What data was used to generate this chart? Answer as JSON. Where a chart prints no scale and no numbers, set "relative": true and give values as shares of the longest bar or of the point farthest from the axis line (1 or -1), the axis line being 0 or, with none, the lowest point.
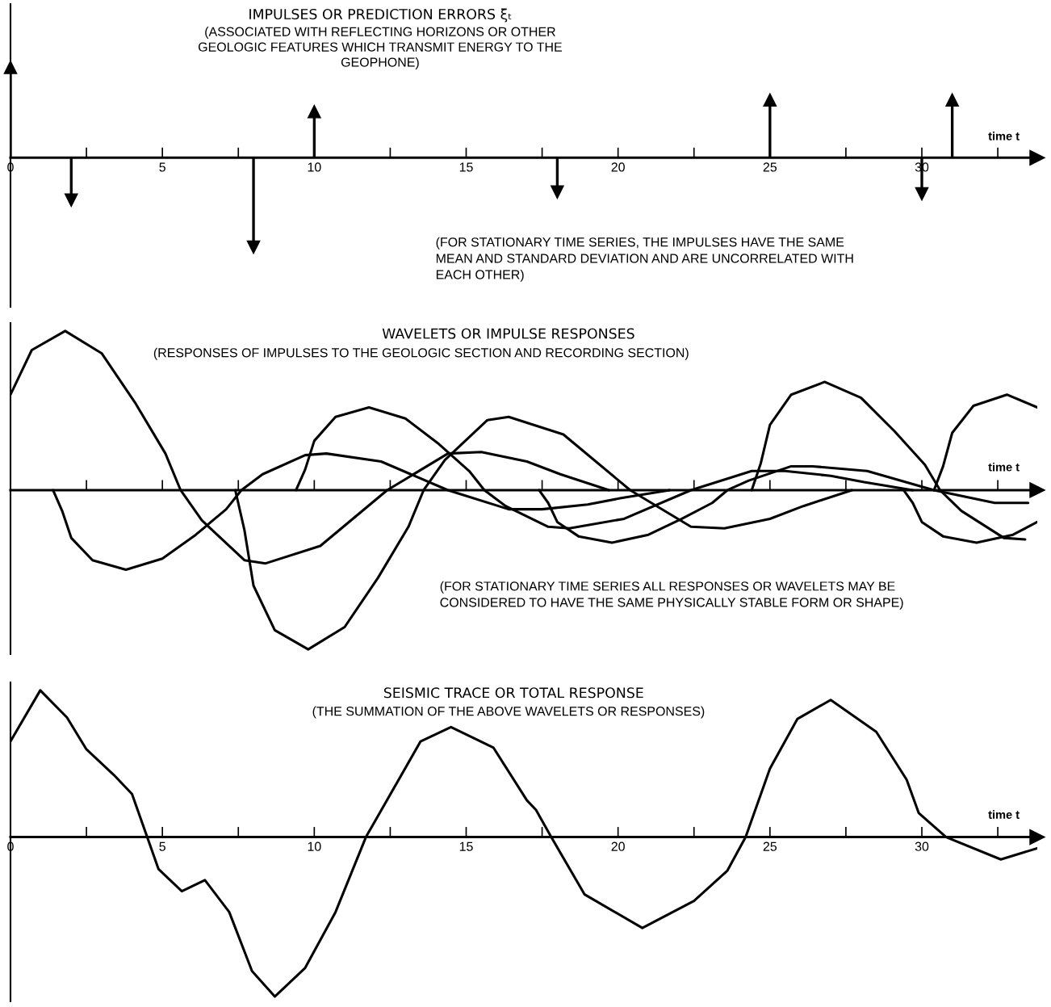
{
  "chart_data": [
    {
      "type": "lollipop",
      "title": "IMPULSES OR PREDICTION ERRORS ξₜ",
      "subtitle": "(ASSOCIATED WITH REFLECTING HORIZONS OR OTHER\nGEOLOGIC FEATURES WHICH TRANSMIT ENERGY TO THE\nGEOPHONE)",
      "xlabel": "time t",
      "annotations": [
        "(FOR STATIONARY TIME SERIES, THE IMPULSES HAVE THE SAME\nMEAN AND STANDARD DEVIATION AND ARE UNCORRELATED WITH\nEACH OTHER)"
      ],
      "relative": true,
      "marker": "triangle",
      "color": "#000000",
      "x": [
        0,
        2,
        8,
        10,
        18,
        25,
        30,
        31
      ],
      "values": [
        1.0,
        -0.47,
        -0.99,
        0.51,
        -0.38,
        0.64,
        -0.4,
        0.64
      ],
      "xlim": [
        0,
        33.8
      ],
      "xticks": [
        0,
        {
          "value": 2.5,
          "label": null
        },
        5,
        {
          "value": 7.5,
          "label": null
        },
        10,
        {
          "value": 12.5,
          "label": null
        },
        15,
        {
          "value": 17.5,
          "label": null
        },
        20,
        {
          "value": 22.5,
          "label": null
        },
        25,
        {
          "value": 27.5,
          "label": null
        },
        30,
        {
          "value": 32.5,
          "label": null
        }
      ],
      "tick_labels": "x"
    },
    {
      "type": "line",
      "title": "WAVELETS OR IMPULSE RESPONSES",
      "subtitle": "(RESPONSES OF IMPULSES TO THE GEOLOGIC SECTION AND RECORDING SECTION)",
      "xlabel": "time t",
      "annotations": [
        "(FOR STATIONARY TIME SERIES ALL RESPONSES OR WAVELETS MAY BE\nCONSIDERED TO HAVE THE SAME PHYSICALLY STABLE FORM OR SHAPE)"
      ],
      "relative": true,
      "series": [
        {
          "color": "#000000",
          "x": [
            0,
            0.7,
            1.8,
            3,
            4.1,
            5.1,
            5.6,
            6.3,
            7.7,
            8.4,
            10.2,
            12.4,
            14.4,
            15.5,
            17,
            18.1,
            19.7
          ],
          "values": [
            0.6,
            0.88,
            1.0,
            0.86,
            0.55,
            0.23,
            0,
            -0.19,
            -0.44,
            -0.46,
            -0.35,
            0,
            0.23,
            0.24,
            0.18,
            0.1,
            0
          ]
        },
        {
          "color": "#000000",
          "x": [
            1.4,
            1.7,
            2,
            2.7,
            3.8,
            5,
            6.1,
            7.1,
            7.6,
            8.3,
            9.7,
            10.4,
            12.2,
            14.4,
            16.4,
            17.5,
            19,
            20.1,
            21.7
          ],
          "values": [
            0,
            -0.13,
            -0.3,
            -0.44,
            -0.5,
            -0.43,
            -0.28,
            -0.12,
            0,
            0.1,
            0.22,
            0.23,
            0.18,
            0,
            -0.12,
            -0.12,
            -0.09,
            -0.05,
            0
          ]
        },
        {
          "color": "#000000",
          "x": [
            7.4,
            7.7,
            8,
            8.7,
            9.8,
            11,
            12.1,
            13.1,
            13.6,
            14.3,
            15.7,
            16.4,
            18.2,
            20.4,
            22.4,
            23.5,
            25,
            26.1,
            27.7
          ],
          "values": [
            0,
            -0.25,
            -0.6,
            -0.88,
            -1.0,
            -0.86,
            -0.55,
            -0.23,
            0,
            0.19,
            0.44,
            0.46,
            0.35,
            0,
            -0.23,
            -0.24,
            -0.18,
            -0.1,
            0
          ]
        },
        {
          "color": "#000000",
          "x": [
            9.4,
            9.7,
            10,
            10.7,
            11.8,
            13,
            14.1,
            15.1,
            15.6,
            16.3,
            17.7,
            18.4,
            20.2,
            22.4,
            24.4,
            25.5,
            27,
            28.1,
            29.7
          ],
          "values": [
            0,
            0.13,
            0.31,
            0.46,
            0.52,
            0.45,
            0.29,
            0.12,
            0,
            -0.1,
            -0.23,
            -0.24,
            -0.18,
            0,
            0.12,
            0.12,
            0.09,
            0.05,
            0
          ]
        },
        {
          "color": "#000000",
          "x": [
            17.4,
            17.7,
            18,
            18.7,
            19.8,
            21,
            22.1,
            23.1,
            23.6,
            24.3,
            25.7,
            26.4,
            28.2,
            30.4,
            32.4,
            33.5
          ],
          "values": [
            0,
            -0.08,
            -0.2,
            -0.29,
            -0.33,
            -0.28,
            -0.18,
            -0.08,
            0,
            0.06,
            0.15,
            0.15,
            0.12,
            0,
            -0.08,
            -0.08
          ]
        },
        {
          "color": "#000000",
          "x": [
            24.4,
            24.7,
            25,
            25.7,
            26.8,
            28,
            29.1,
            30.1,
            30.6,
            31.3,
            32.7,
            33.4
          ],
          "values": [
            0,
            0.17,
            0.41,
            0.6,
            0.68,
            0.58,
            0.37,
            0.16,
            0,
            -0.13,
            -0.3,
            -0.31
          ]
        },
        {
          "color": "#000000",
          "x": [
            29.4,
            29.7,
            30,
            30.7,
            31.8,
            33,
            33.8
          ],
          "values": [
            0,
            -0.08,
            -0.2,
            -0.29,
            -0.33,
            -0.28,
            -0.2
          ]
        },
        {
          "color": "#000000",
          "x": [
            30.4,
            30.7,
            31,
            31.7,
            32.8,
            33.8
          ],
          "values": [
            0,
            0.15,
            0.36,
            0.53,
            0.6,
            0.52
          ]
        }
      ],
      "xlim": [
        0,
        33.8
      ],
      "xticks": [
        0,
        {
          "value": 2.5,
          "label": null
        },
        5,
        {
          "value": 7.5,
          "label": null
        },
        10,
        {
          "value": 12.5,
          "label": null
        },
        15,
        {
          "value": 17.5,
          "label": null
        },
        20,
        {
          "value": 22.5,
          "label": null
        },
        25,
        {
          "value": 27.5,
          "label": null
        },
        30,
        {
          "value": 32.5,
          "label": null
        }
      ],
      "tick_labels": false
    },
    {
      "type": "line",
      "title": "SEISMIC TRACE OR TOTAL RESPONSE",
      "subtitle": "(THE SUMMATION OF THE ABOVE WAVELETS OR RESPONSES)",
      "xlabel": "time t",
      "relative": true,
      "color": "#000000",
      "x": [
        0,
        0.98,
        1.86,
        2.5,
        3.4,
        4.0,
        4.5,
        4.87,
        5.64,
        6.4,
        7.2,
        7.95,
        8.7,
        9.7,
        10.7,
        11.7,
        13.5,
        14.5,
        15.9,
        17.0,
        17.3,
        17.8,
        18.9,
        20.8,
        22.5,
        23.6,
        24.2,
        25.0,
        25.9,
        27.0,
        28.5,
        29.5,
        29.9,
        30.8,
        32.6,
        33.8
      ],
      "values": [
        0.6,
        0.92,
        0.75,
        0.55,
        0.39,
        0.27,
        0,
        -0.2,
        -0.34,
        -0.27,
        -0.47,
        -0.84,
        -1.0,
        -0.82,
        -0.47,
        0,
        0.6,
        0.69,
        0.56,
        0.23,
        0.17,
        0,
        -0.36,
        -0.57,
        -0.4,
        -0.21,
        0,
        0.43,
        0.74,
        0.86,
        0.66,
        0.36,
        0.15,
        0,
        -0.14,
        -0.07
      ],
      "xlim": [
        0,
        33.8
      ],
      "xticks": [
        0,
        {
          "value": 2.5,
          "label": null
        },
        5,
        {
          "value": 7.5,
          "label": null
        },
        10,
        {
          "value": 12.5,
          "label": null
        },
        15,
        {
          "value": 17.5,
          "label": null
        },
        20,
        {
          "value": 22.5,
          "label": null
        },
        25,
        {
          "value": 27.5,
          "label": null
        },
        30,
        {
          "value": 32.5,
          "label": null
        }
      ],
      "tick_labels": "x"
    }
  ]
}
